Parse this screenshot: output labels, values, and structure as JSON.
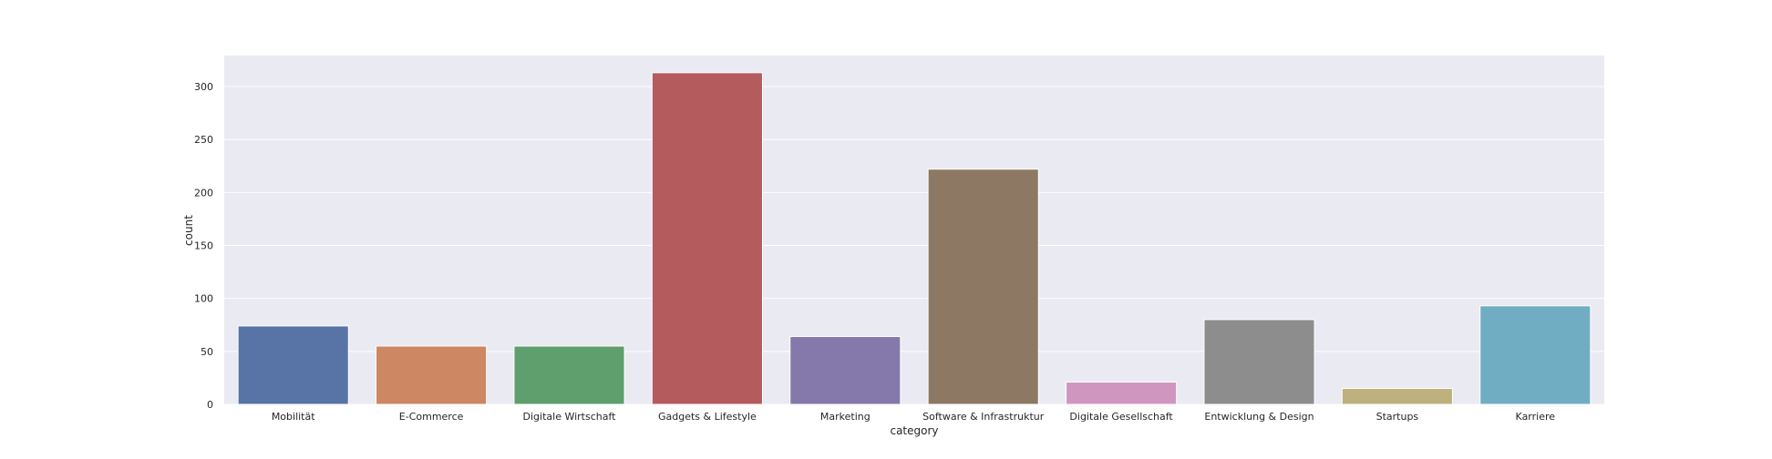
{
  "chart_data": {
    "type": "bar",
    "title": "",
    "xlabel": "category",
    "ylabel": "count",
    "categories": [
      "Mobilität",
      "E-Commerce",
      "Digitale Wirtschaft",
      "Gadgets & Lifestyle",
      "Marketing",
      "Software & Infrastruktur",
      "Digitale Gesellschaft",
      "Entwicklung & Design",
      "Startups",
      "Karriere"
    ],
    "values": [
      74,
      55,
      55,
      313,
      64,
      222,
      21,
      80,
      15,
      93
    ],
    "colors": [
      "#5873a6",
      "#cd8762",
      "#5e9f6d",
      "#b45b5e",
      "#8579ab",
      "#8c7863",
      "#cf96c0",
      "#8d8d8d",
      "#beb17d",
      "#71adc2"
    ],
    "ylim": [
      0,
      330
    ],
    "yticks": [
      0,
      50,
      100,
      150,
      200,
      250,
      300
    ],
    "grid": true,
    "background": "#eaeaf2",
    "gridColor": "#ffffff"
  }
}
